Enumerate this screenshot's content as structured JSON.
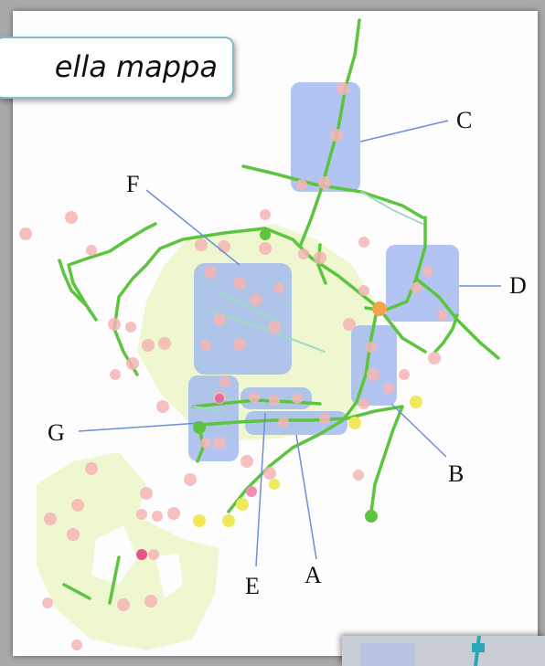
{
  "title": "ella mappa",
  "callouts": [
    {
      "id": "A",
      "label": "A"
    },
    {
      "id": "B",
      "label": "B"
    },
    {
      "id": "C",
      "label": "C"
    },
    {
      "id": "D",
      "label": "D"
    },
    {
      "id": "E",
      "label": "E"
    },
    {
      "id": "F",
      "label": "F"
    },
    {
      "id": "G",
      "label": "G"
    }
  ],
  "colors": {
    "background": "#a9a9a9",
    "map_background": "#fdfdfd",
    "area_fill": "#eef7cf",
    "route_line": "#5cc43e",
    "highlight_box": "#9fb6ef",
    "leader_line": "#6b8fd9",
    "stop_dot_pink": "#f5b5b5",
    "stop_dot_yellow": "#f2e85c",
    "stop_dot_orange": "#f5a24a"
  }
}
